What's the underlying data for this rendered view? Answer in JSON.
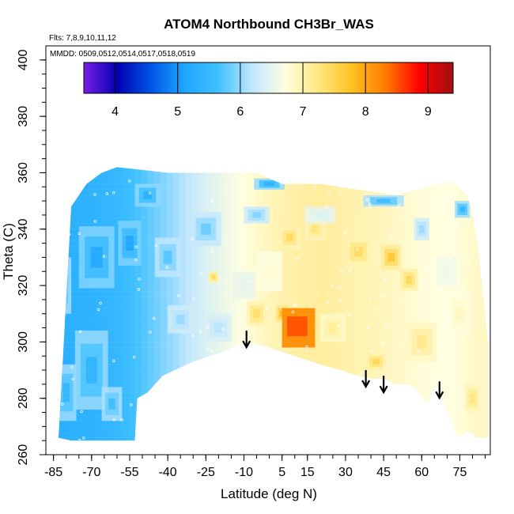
{
  "chart_data": {
    "type": "heatmap",
    "title": "ATOM4 Northbound CH3Br_WAS",
    "annotations": [
      "Flts: 7,8,9,10,11,12",
      "MMDD: 0509,0512,0514,0517,0518,0519"
    ],
    "xlabel": "Latitude (deg N)",
    "ylabel": "Theta (C)",
    "xlim": [
      -88,
      87
    ],
    "ylim": [
      260,
      405
    ],
    "x_ticks": [
      "-85",
      "-70",
      "-55",
      "-40",
      "-25",
      "-10",
      "5",
      "15",
      "30",
      "45",
      "60",
      "75"
    ],
    "x_tick_values": [
      -85,
      -70,
      -55,
      -40,
      -25,
      -10,
      5,
      15,
      30,
      45,
      60,
      75
    ],
    "y_ticks": [
      "260",
      "280",
      "300",
      "320",
      "340",
      "360",
      "380",
      "400"
    ],
    "y_tick_values": [
      260,
      280,
      300,
      320,
      340,
      360,
      380,
      400
    ],
    "colorbar": {
      "min": 3.5,
      "max": 9.4,
      "ticks": [
        "4",
        "5",
        "6",
        "7",
        "8",
        "9"
      ],
      "tick_values": [
        4,
        5,
        6,
        7,
        8,
        9
      ],
      "colors": [
        "#7a1fe6",
        "#0000b0",
        "#0055e6",
        "#1fa6ff",
        "#3fc0ff",
        "#bfe6ff",
        "#ffffe0",
        "#ffe680",
        "#ffc020",
        "#ff7a00",
        "#ff0000",
        "#a01010"
      ]
    },
    "arrows_latitude": [
      -9,
      38,
      45,
      67
    ],
    "field_extent": {
      "top": [
        [
          -78,
          348
        ],
        [
          -72,
          356
        ],
        [
          -66,
          360
        ],
        [
          -60,
          362
        ],
        [
          -40,
          360
        ],
        [
          -20,
          360
        ],
        [
          -5,
          360
        ],
        [
          5,
          356
        ],
        [
          20,
          356
        ],
        [
          35,
          354
        ],
        [
          50,
          352
        ],
        [
          58,
          354
        ],
        [
          66,
          356
        ],
        [
          72,
          357
        ],
        [
          78,
          352
        ],
        [
          80,
          345
        ],
        [
          82,
          335
        ],
        [
          84,
          318
        ],
        [
          86,
          300
        ]
      ],
      "bottom": [
        [
          -83,
          266
        ],
        [
          -78,
          265
        ],
        [
          -53,
          265
        ],
        [
          -52,
          280
        ],
        [
          -48,
          282
        ],
        [
          -42,
          288
        ],
        [
          -30,
          293
        ],
        [
          -20,
          296
        ],
        [
          -8,
          300
        ],
        [
          0,
          298
        ],
        [
          10,
          295
        ],
        [
          20,
          292
        ],
        [
          28,
          290
        ],
        [
          35,
          288
        ],
        [
          40,
          287
        ],
        [
          45,
          287
        ],
        [
          50,
          285
        ],
        [
          55,
          285
        ],
        [
          58,
          283
        ],
        [
          62,
          278
        ],
        [
          66,
          285
        ],
        [
          70,
          275
        ],
        [
          74,
          266
        ],
        [
          78,
          268
        ],
        [
          82,
          266
        ],
        [
          86,
          266
        ]
      ]
    },
    "blobs": [
      {
        "lat": -70,
        "theta": 290,
        "value": 5.35,
        "w": 13,
        "h": 28
      },
      {
        "lat": -80,
        "theta": 282,
        "value": 5.4,
        "w": 8,
        "h": 20
      },
      {
        "lat": -62,
        "theta": 278,
        "value": 5.55,
        "w": 8,
        "h": 12
      },
      {
        "lat": -68,
        "theta": 330,
        "value": 5.15,
        "w": 14,
        "h": 22
      },
      {
        "lat": -55,
        "theta": 335,
        "value": 5.1,
        "w": 9,
        "h": 16
      },
      {
        "lat": -82,
        "theta": 320,
        "value": 5.45,
        "w": 8,
        "h": 20
      },
      {
        "lat": -48,
        "theta": 352,
        "value": 5.25,
        "w": 10,
        "h": 8
      },
      {
        "lat": -40,
        "theta": 330,
        "value": 5.7,
        "w": 10,
        "h": 14
      },
      {
        "lat": -35,
        "theta": 308,
        "value": 6.0,
        "w": 10,
        "h": 10
      },
      {
        "lat": -25,
        "theta": 340,
        "value": 5.8,
        "w": 12,
        "h": 12
      },
      {
        "lat": -20,
        "theta": 305,
        "value": 6.15,
        "w": 10,
        "h": 10
      },
      {
        "lat": -10,
        "theta": 320,
        "value": 6.5,
        "w": 9,
        "h": 10
      },
      {
        "lat": 0,
        "theta": 325,
        "value": 6.8,
        "w": 10,
        "h": 14
      },
      {
        "lat": 8,
        "theta": 337,
        "value": 7.45,
        "w": 8,
        "h": 8
      },
      {
        "lat": 18,
        "theta": 340,
        "value": 7.3,
        "w": 8,
        "h": 8
      },
      {
        "lat": 12,
        "theta": 305,
        "value": 8.3,
        "w": 6,
        "h": 5
      },
      {
        "lat": 5,
        "theta": 310,
        "value": 7.9,
        "w": 5,
        "h": 6
      },
      {
        "lat": -5,
        "theta": 310,
        "value": 7.4,
        "w": 8,
        "h": 9
      },
      {
        "lat": -22,
        "theta": 323,
        "value": 7.5,
        "w": 4,
        "h": 4
      },
      {
        "lat": 25,
        "theta": 305,
        "value": 7.15,
        "w": 10,
        "h": 10
      },
      {
        "lat": 35,
        "theta": 332,
        "value": 7.45,
        "w": 10,
        "h": 10
      },
      {
        "lat": 48,
        "theta": 330,
        "value": 7.7,
        "w": 8,
        "h": 9
      },
      {
        "lat": 55,
        "theta": 322,
        "value": 7.5,
        "w": 7,
        "h": 8
      },
      {
        "lat": 42,
        "theta": 293,
        "value": 7.5,
        "w": 8,
        "h": 6
      },
      {
        "lat": 60,
        "theta": 300,
        "value": 7.2,
        "w": 12,
        "h": 14
      },
      {
        "lat": 75,
        "theta": 310,
        "value": 6.9,
        "w": 8,
        "h": 14
      },
      {
        "lat": 60,
        "theta": 340,
        "value": 6.0,
        "w": 6,
        "h": 8
      },
      {
        "lat": 76,
        "theta": 347,
        "value": 5.4,
        "w": 6,
        "h": 6
      },
      {
        "lat": 70,
        "theta": 325,
        "value": 6.6,
        "w": 8,
        "h": 10
      },
      {
        "lat": 80,
        "theta": 280,
        "value": 7.3,
        "w": 6,
        "h": 10
      },
      {
        "lat": -5,
        "theta": 345,
        "value": 5.9,
        "w": 10,
        "h": 6
      },
      {
        "lat": 20,
        "theta": 345,
        "value": 6.4,
        "w": 12,
        "h": 6
      },
      {
        "lat": 0,
        "theta": 356,
        "value": 5.3,
        "w": 12,
        "h": 4
      },
      {
        "lat": 45,
        "theta": 350,
        "value": 5.5,
        "w": 16,
        "h": 4
      }
    ],
    "hotspot": {
      "lat_range": [
        5,
        18
      ],
      "theta_range": [
        298,
        312
      ],
      "value": 8.15
    }
  }
}
